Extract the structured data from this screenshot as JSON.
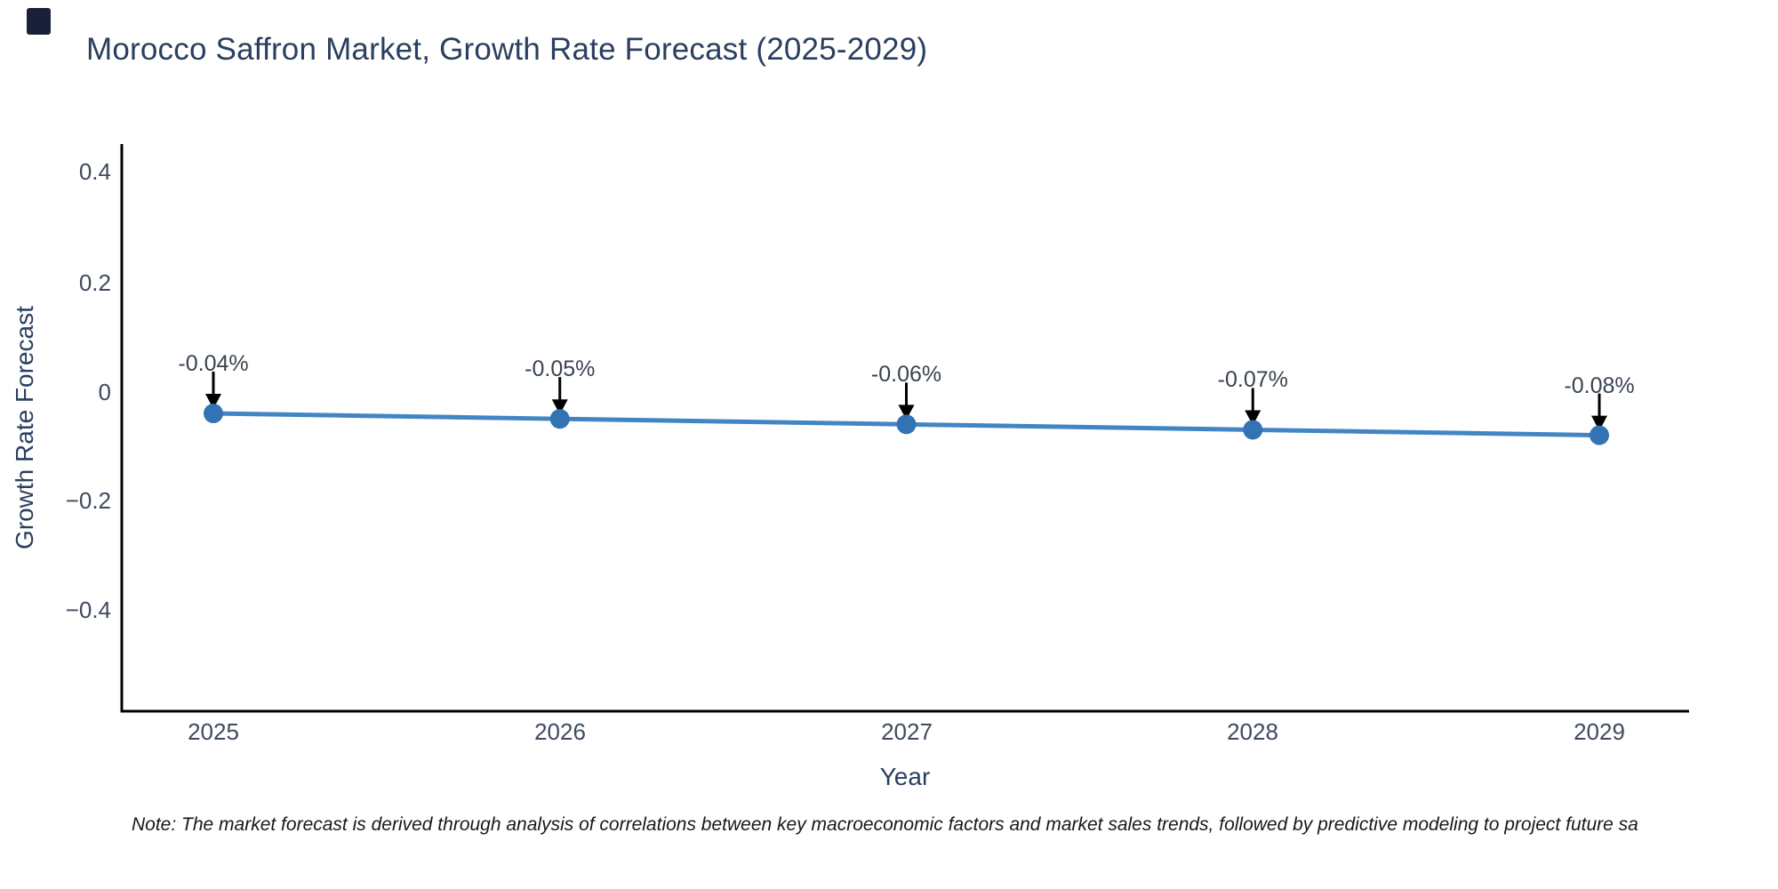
{
  "header": {
    "title": "Morocco Saffron Market, Growth Rate Forecast (2025-2029)"
  },
  "chart_data": {
    "type": "line",
    "title": "Morocco Saffron Market, Growth Rate Forecast (2025-2029)",
    "xlabel": "Year",
    "ylabel": "Growth Rate Forecast",
    "x": [
      2025,
      2026,
      2027,
      2028,
      2029
    ],
    "series": [
      {
        "name": "Growth Rate Forecast",
        "values": [
          -0.04,
          -0.05,
          -0.06,
          -0.07,
          -0.08
        ]
      }
    ],
    "annotations": [
      "-0.04%",
      "-0.05%",
      "-0.06%",
      "-0.07%",
      "-0.08%"
    ],
    "x_tick_labels": [
      "2025",
      "2026",
      "2027",
      "2028",
      "2029"
    ],
    "y_tick_labels": [
      "0.4",
      "0.2",
      "0",
      "−0.2",
      "−0.4"
    ],
    "y_ticks": [
      0.4,
      0.2,
      0,
      -0.2,
      -0.4
    ],
    "ylim": [
      -0.58,
      0.45
    ],
    "grid": false,
    "legend_position": "none",
    "line_color": "#4285c4",
    "marker_color": "#3373b3",
    "axis_color": "#000000",
    "arrow_color": "#000000"
  },
  "footer": {
    "note": "Note: The market forecast is derived through analysis of correlations between key macroeconomic factors and market sales trends, followed by predictive modeling to project future sa"
  }
}
